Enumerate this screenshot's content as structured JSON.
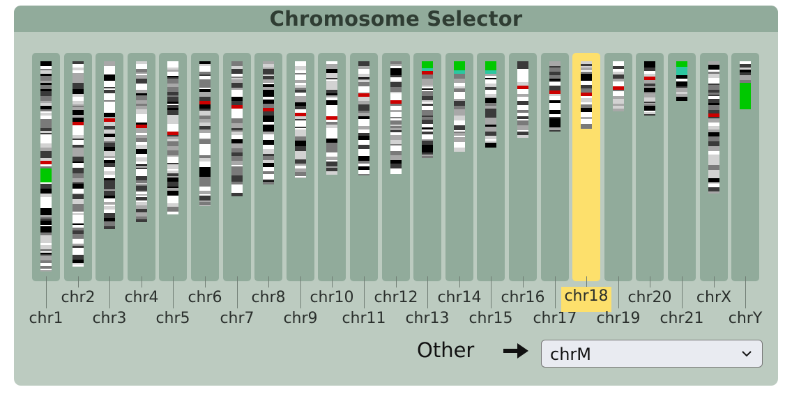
{
  "selector": {
    "title": "Chromosome Selector",
    "selected": "chr18",
    "other_label": "Other",
    "other_select_value": "chrM"
  },
  "colors": {
    "panel_bg": "#bccbc0",
    "header_bg": "#91ab9b",
    "column_bg": "#91ab9b",
    "selected_highlight": "#fde06c",
    "band_centromere": "#cc0000",
    "band_stalk": "#00c800"
  },
  "chromosomes": [
    {
      "name": "chr1",
      "size_mb": 248
    },
    {
      "name": "chr2",
      "size_mb": 242
    },
    {
      "name": "chr3",
      "size_mb": 198
    },
    {
      "name": "chr4",
      "size_mb": 190
    },
    {
      "name": "chr5",
      "size_mb": 181
    },
    {
      "name": "chr6",
      "size_mb": 171
    },
    {
      "name": "chr7",
      "size_mb": 159
    },
    {
      "name": "chr8",
      "size_mb": 145
    },
    {
      "name": "chr9",
      "size_mb": 138
    },
    {
      "name": "chr10",
      "size_mb": 134
    },
    {
      "name": "chr11",
      "size_mb": 135
    },
    {
      "name": "chr12",
      "size_mb": 133
    },
    {
      "name": "chr13",
      "size_mb": 114
    },
    {
      "name": "chr14",
      "size_mb": 107
    },
    {
      "name": "chr15",
      "size_mb": 102
    },
    {
      "name": "chr16",
      "size_mb": 90
    },
    {
      "name": "chr17",
      "size_mb": 83
    },
    {
      "name": "chr18",
      "size_mb": 80
    },
    {
      "name": "chr19",
      "size_mb": 59
    },
    {
      "name": "chr20",
      "size_mb": 64
    },
    {
      "name": "chr21",
      "size_mb": 47
    },
    {
      "name": "chrX",
      "size_mb": 156
    },
    {
      "name": "chrY",
      "size_mb": 57
    }
  ]
}
